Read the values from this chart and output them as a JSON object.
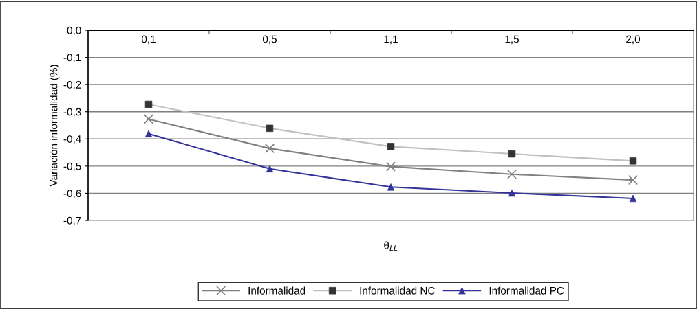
{
  "chart_data": {
    "type": "line",
    "categories": [
      "0,1",
      "0,5",
      "1,1",
      "1,5",
      "2,0"
    ],
    "xlabel": "θ$_{LL}$",
    "ylabel": "Variación informalidad (%)",
    "ylim": [
      -0.7,
      0.0
    ],
    "yticks": [
      {
        "value": 0.0,
        "label": "0,0"
      },
      {
        "value": -0.1,
        "label": "-0,1"
      },
      {
        "value": -0.2,
        "label": "-0,2"
      },
      {
        "value": -0.3,
        "label": "-0,3"
      },
      {
        "value": -0.4,
        "label": "-0,4"
      },
      {
        "value": -0.5,
        "label": "-0,5"
      },
      {
        "value": -0.6,
        "label": "-0,6"
      },
      {
        "value": -0.7,
        "label": "-0,7"
      }
    ],
    "grid": "y",
    "legend": "bottom",
    "series": [
      {
        "name": "Informalidad",
        "color": "#808080",
        "marker": "cross",
        "values": [
          -0.327,
          -0.435,
          -0.502,
          -0.53,
          -0.551
        ]
      },
      {
        "name": "Informalidad NC",
        "color": "#c0c0c0",
        "marker": "square",
        "values": [
          -0.273,
          -0.361,
          -0.428,
          -0.455,
          -0.481
        ]
      },
      {
        "name": "Informalidad PC",
        "color": "#333399",
        "marker": "triangle",
        "values": [
          -0.381,
          -0.51,
          -0.577,
          -0.599,
          -0.619
        ]
      }
    ]
  }
}
